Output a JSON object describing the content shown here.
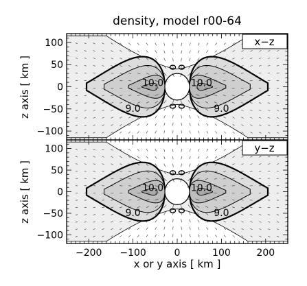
{
  "chart_data": [
    {
      "type": "contour",
      "title": "density, model r00-64",
      "panel_label": "x−z",
      "ylabel": "z axis [ km ]",
      "xlabel": "",
      "xlim": [
        -250,
        250
      ],
      "ylim": [
        -120,
        120
      ],
      "x_ticks": [
        -200,
        -100,
        0,
        100,
        200
      ],
      "y_ticks": [
        -100,
        -50,
        0,
        50,
        100
      ],
      "y_tick_labels": [
        "−100",
        "−50",
        "0",
        "50",
        "100"
      ],
      "contour_labels": [
        {
          "text": "10.0",
          "x": -55,
          "z": 8
        },
        {
          "text": "10.0",
          "x": 55,
          "z": 8
        },
        {
          "text": "9.0",
          "x": -100,
          "z": -50
        },
        {
          "text": "9.0",
          "x": 100,
          "z": -50
        }
      ],
      "levels": [
        8.5,
        9.0,
        9.5,
        10.0
      ],
      "bold_level": 9.0,
      "has_velocity_field": true,
      "shading": "grayscale"
    },
    {
      "type": "contour",
      "title": "",
      "panel_label": "y−z",
      "ylabel": "z axis [ km ]",
      "xlabel": "x or y axis [ km ]",
      "xlim": [
        -250,
        250
      ],
      "ylim": [
        -120,
        120
      ],
      "x_ticks": [
        -200,
        -100,
        0,
        100,
        200
      ],
      "x_tick_labels": [
        "−200",
        "−100",
        "0",
        "100",
        "200"
      ],
      "y_ticks": [
        -100,
        -50,
        0,
        50,
        100
      ],
      "y_tick_labels": [
        "−100",
        "−50",
        "0",
        "50",
        "100"
      ],
      "contour_labels": [
        {
          "text": "10.0",
          "x": -55,
          "z": 8
        },
        {
          "text": "10.0",
          "x": 55,
          "z": 8
        },
        {
          "text": "9.0",
          "x": -100,
          "z": -50
        },
        {
          "text": "9.0",
          "x": 100,
          "z": -50
        }
      ],
      "levels": [
        8.5,
        9.0,
        9.5,
        10.0
      ],
      "bold_level": 9.0,
      "has_velocity_field": true,
      "shading": "grayscale"
    }
  ]
}
